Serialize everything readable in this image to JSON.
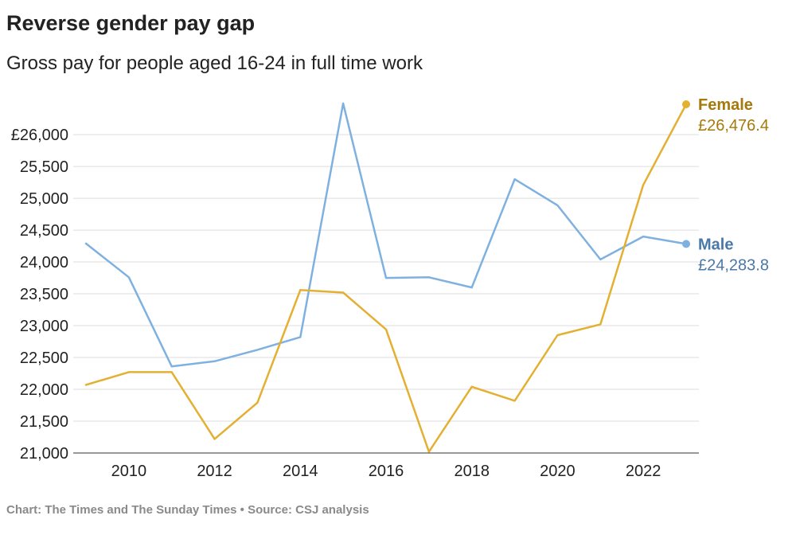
{
  "title": "Reverse gender pay gap",
  "subtitle": "Gross pay for people aged 16-24 in full time work",
  "footer": "Chart: The Times and The Sunday Times • Source: CSJ analysis",
  "chart_data": {
    "type": "line",
    "x": [
      2009,
      2010,
      2011,
      2012,
      2013,
      2014,
      2015,
      2016,
      2017,
      2018,
      2019,
      2020,
      2021,
      2022,
      2023
    ],
    "xticks": [
      2010,
      2012,
      2014,
      2016,
      2018,
      2020,
      2022
    ],
    "yticks": [
      21000,
      21500,
      22000,
      22500,
      23000,
      23500,
      24000,
      24500,
      25000,
      25500,
      26000
    ],
    "ytick_labels": [
      "21,000",
      "21,500",
      "22,000",
      "22,500",
      "23,000",
      "23,500",
      "24,000",
      "24,500",
      "25,000",
      "25,500",
      "£26,000"
    ],
    "ylim": [
      21000,
      26476.4
    ],
    "xlim": [
      2009,
      2023
    ],
    "grid": "horizontal",
    "series": [
      {
        "name": "Male",
        "color": "#7fb1e0",
        "label_color": "#4a78a8",
        "end_value_label": "£24,283.8",
        "values": [
          24290,
          23760,
          22360,
          22440,
          22620,
          22820,
          26490,
          23750,
          23760,
          23600,
          25300,
          24890,
          24040,
          24400,
          24283.8
        ]
      },
      {
        "name": "Female",
        "color": "#e3b032",
        "label_color": "#a6790b",
        "end_value_label": "£26,476.4",
        "values": [
          22070,
          22270,
          22270,
          21220,
          21790,
          23560,
          23520,
          22940,
          21020,
          22040,
          21820,
          22850,
          23020,
          25210,
          26476.4
        ]
      }
    ]
  }
}
